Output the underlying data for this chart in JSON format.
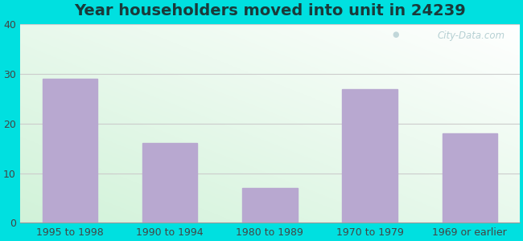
{
  "title": "Year householders moved into unit in 24239",
  "categories": [
    "1995 to 1998",
    "1990 to 1994",
    "1980 to 1989",
    "1970 to 1979",
    "1969 or earlier"
  ],
  "values": [
    29,
    16,
    7,
    27,
    18
  ],
  "bar_color": "#b8a8d0",
  "ylim": [
    0,
    40
  ],
  "yticks": [
    0,
    10,
    20,
    30,
    40
  ],
  "outer_bg": "#00e0e0",
  "title_fontsize": 14,
  "tick_fontsize": 9,
  "title_color": "#1a3a3a",
  "watermark_text": "City-Data.com"
}
